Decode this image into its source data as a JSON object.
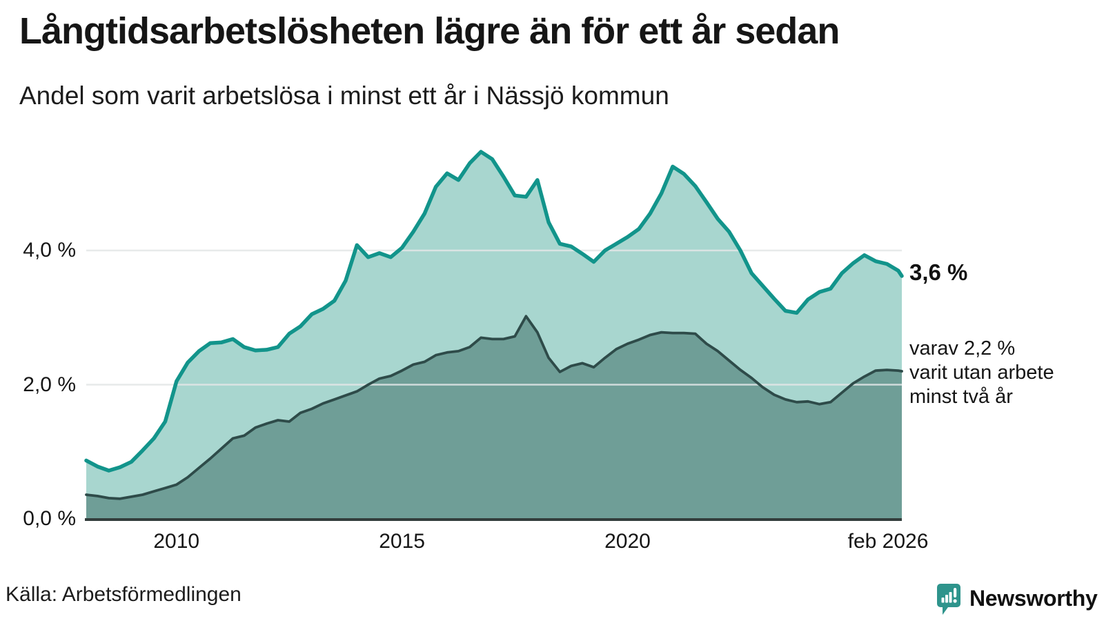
{
  "header": {
    "title": "Långtidsarbetslösheten lägre än för ett år sedan",
    "subtitle": "Andel som varit arbetslösa i minst ett år i Nässjö kommun"
  },
  "annotations": {
    "latest_value": "3,6 %",
    "secondary_label": "varav 2,2 %\nvarit utan arbete\nminst två år"
  },
  "source": "Källa: Arbetsförmedlingen",
  "branding": {
    "logo_text": "Newsworthy",
    "logo_color": "#2e948c"
  },
  "colors": {
    "line_1yr": "#12948b",
    "fill_1yr": "#a8d6cf",
    "line_2yr": "#2e4b49",
    "fill_2yr": "#6f9e97",
    "gridline": "#e3e6e6",
    "axis": "#333d3c",
    "text": "#161616"
  },
  "chart_data": {
    "type": "area",
    "title": "Långtidsarbetslösheten lägre än för ett år sedan",
    "subtitle": "Andel som varit arbetslösa i minst ett år i Nässjö kommun",
    "x_unit": "decimal_year",
    "xlim": [
      2008.0,
      2026.08
    ],
    "ylim": [
      0,
      5.8
    ],
    "grid": "horizontal",
    "legend_position": "none",
    "x": [
      2008,
      2008.25,
      2008.5,
      2008.75,
      2009,
      2009.25,
      2009.5,
      2009.75,
      2010,
      2010.25,
      2010.5,
      2010.75,
      2011,
      2011.25,
      2011.5,
      2011.75,
      2012,
      2012.25,
      2012.5,
      2012.75,
      2013,
      2013.25,
      2013.5,
      2013.75,
      2014,
      2014.25,
      2014.5,
      2014.75,
      2015,
      2015.25,
      2015.5,
      2015.75,
      2016,
      2016.25,
      2016.5,
      2016.75,
      2017,
      2017.25,
      2017.5,
      2017.75,
      2018,
      2018.25,
      2018.5,
      2018.75,
      2019,
      2019.25,
      2019.5,
      2019.75,
      2020,
      2020.25,
      2020.5,
      2020.75,
      2021,
      2021.25,
      2021.5,
      2021.75,
      2022,
      2022.25,
      2022.5,
      2022.75,
      2023,
      2023.25,
      2023.5,
      2023.75,
      2024,
      2024.25,
      2024.5,
      2024.75,
      2025,
      2025.25,
      2025.5,
      2025.75,
      2026,
      2026.08
    ],
    "series": [
      {
        "name": "Arbetslösa minst ett år",
        "line_color": "#12948b",
        "fill_color": "#a8d6cf",
        "line_width": 5.5,
        "values": [
          0.87,
          0.78,
          0.72,
          0.77,
          0.85,
          1.02,
          1.2,
          1.45,
          2.05,
          2.33,
          2.5,
          2.62,
          2.63,
          2.68,
          2.56,
          2.51,
          2.52,
          2.56,
          2.76,
          2.87,
          3.05,
          3.13,
          3.25,
          3.55,
          4.08,
          3.9,
          3.96,
          3.9,
          4.04,
          4.28,
          4.55,
          4.95,
          5.15,
          5.05,
          5.3,
          5.47,
          5.36,
          5.1,
          4.82,
          4.8,
          5.05,
          4.42,
          4.1,
          4.06,
          3.95,
          3.83,
          4.0,
          4.1,
          4.2,
          4.32,
          4.55,
          4.85,
          5.25,
          5.14,
          4.96,
          4.72,
          4.47,
          4.28,
          4.0,
          3.66,
          3.47,
          3.28,
          3.1,
          3.07,
          3.27,
          3.38,
          3.43,
          3.66,
          3.81,
          3.93,
          3.84,
          3.8,
          3.7,
          3.62
        ]
      },
      {
        "name": "Utan arbete minst två år",
        "line_color": "#2e4b49",
        "fill_color": "#6f9e97",
        "line_width": 3.8,
        "values": [
          0.36,
          0.34,
          0.31,
          0.3,
          0.33,
          0.36,
          0.41,
          0.46,
          0.51,
          0.62,
          0.76,
          0.9,
          1.05,
          1.2,
          1.24,
          1.36,
          1.42,
          1.47,
          1.45,
          1.58,
          1.64,
          1.72,
          1.78,
          1.84,
          1.9,
          2.0,
          2.09,
          2.13,
          2.21,
          2.3,
          2.34,
          2.44,
          2.48,
          2.5,
          2.56,
          2.7,
          2.68,
          2.68,
          2.72,
          3.02,
          2.78,
          2.4,
          2.19,
          2.28,
          2.32,
          2.26,
          2.4,
          2.53,
          2.61,
          2.67,
          2.74,
          2.78,
          2.77,
          2.77,
          2.76,
          2.61,
          2.5,
          2.36,
          2.22,
          2.1,
          1.96,
          1.85,
          1.78,
          1.74,
          1.75,
          1.71,
          1.74,
          1.88,
          2.02,
          2.12,
          2.21,
          2.22,
          2.21,
          2.2
        ]
      }
    ],
    "y_ticks": [
      {
        "label": "0,0 %",
        "value": 0
      },
      {
        "label": "2,0 %",
        "value": 2
      },
      {
        "label": "4,0 %",
        "value": 4
      }
    ],
    "x_ticks": [
      {
        "label": "2010",
        "value": 2010
      },
      {
        "label": "2015",
        "value": 2015
      },
      {
        "label": "2020",
        "value": 2020
      },
      {
        "label": "feb 2026",
        "value": 2026.08
      }
    ],
    "latest_values": {
      "minst_ett_ar": 3.6,
      "minst_tva_ar": 2.2
    }
  }
}
